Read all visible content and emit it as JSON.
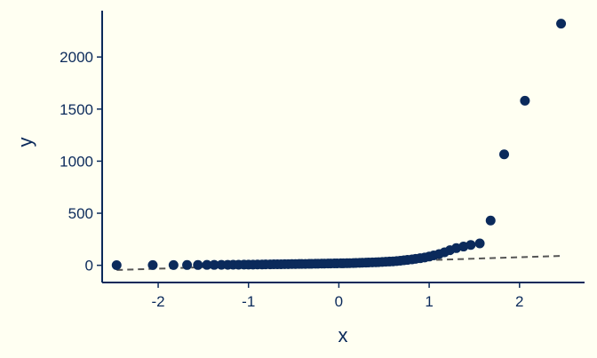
{
  "chart_data": {
    "type": "scatter",
    "title": "",
    "xlabel": "x",
    "ylabel": "y",
    "xlim": [
      -2.62,
      2.72
    ],
    "ylim": [
      -165,
      2445
    ],
    "xticks": [
      -2,
      -1,
      0,
      1,
      2
    ],
    "xtick_labels": [
      "-2",
      "-1",
      "0",
      "1",
      "2"
    ],
    "yticks": [
      0,
      500,
      1000,
      1500,
      2000
    ],
    "ytick_labels": [
      "0",
      "500",
      "1000",
      "1500",
      "2000"
    ],
    "grid": false,
    "colors": {
      "background": "#FFFFF2",
      "points": "#0B2A5B",
      "axis": "#0B2A5B",
      "reference_line": "#555555"
    },
    "series": [
      {
        "type": "scatter",
        "points": [
          [
            -2.46,
            1
          ],
          [
            -2.06,
            2
          ],
          [
            -1.83,
            2
          ],
          [
            -1.68,
            3
          ],
          [
            -1.56,
            3
          ],
          [
            -1.46,
            4
          ],
          [
            -1.38,
            4
          ],
          [
            -1.3,
            5
          ],
          [
            -1.23,
            5
          ],
          [
            -1.17,
            6
          ],
          [
            -1.11,
            6
          ],
          [
            -1.05,
            7
          ],
          [
            -1.0,
            7
          ],
          [
            -0.95,
            7
          ],
          [
            -0.9,
            8
          ],
          [
            -0.85,
            8
          ],
          [
            -0.81,
            9
          ],
          [
            -0.76,
            9
          ],
          [
            -0.72,
            10
          ],
          [
            -0.68,
            10
          ],
          [
            -0.64,
            10
          ],
          [
            -0.6,
            11
          ],
          [
            -0.56,
            11
          ],
          [
            -0.52,
            12
          ],
          [
            -0.48,
            12
          ],
          [
            -0.44,
            13
          ],
          [
            -0.41,
            13
          ],
          [
            -0.37,
            13
          ],
          [
            -0.33,
            14
          ],
          [
            -0.3,
            14
          ],
          [
            -0.26,
            15
          ],
          [
            -0.23,
            15
          ],
          [
            -0.19,
            16
          ],
          [
            -0.16,
            16
          ],
          [
            -0.12,
            17
          ],
          [
            -0.09,
            17
          ],
          [
            -0.05,
            18
          ],
          [
            -0.02,
            18
          ],
          [
            0.02,
            19
          ],
          [
            0.05,
            19
          ],
          [
            0.09,
            20
          ],
          [
            0.12,
            21
          ],
          [
            0.16,
            22
          ],
          [
            0.19,
            23
          ],
          [
            0.23,
            24
          ],
          [
            0.26,
            25
          ],
          [
            0.3,
            26
          ],
          [
            0.33,
            27
          ],
          [
            0.37,
            28
          ],
          [
            0.41,
            29
          ],
          [
            0.44,
            30
          ],
          [
            0.48,
            32
          ],
          [
            0.52,
            34
          ],
          [
            0.56,
            36
          ],
          [
            0.6,
            38
          ],
          [
            0.64,
            41
          ],
          [
            0.68,
            44
          ],
          [
            0.72,
            48
          ],
          [
            0.76,
            52
          ],
          [
            0.81,
            57
          ],
          [
            0.85,
            62
          ],
          [
            0.9,
            68
          ],
          [
            0.95,
            75
          ],
          [
            1.0,
            84
          ],
          [
            1.05,
            95
          ],
          [
            1.11,
            108
          ],
          [
            1.17,
            125
          ],
          [
            1.23,
            145
          ],
          [
            1.3,
            165
          ],
          [
            1.38,
            180
          ],
          [
            1.46,
            195
          ],
          [
            1.56,
            210
          ],
          [
            1.68,
            430
          ],
          [
            1.83,
            1065
          ],
          [
            2.06,
            1580
          ],
          [
            2.46,
            2320
          ]
        ]
      },
      {
        "type": "line",
        "style": "dashed",
        "points": [
          [
            -2.46,
            -45
          ],
          [
            2.46,
            90
          ]
        ]
      }
    ]
  }
}
